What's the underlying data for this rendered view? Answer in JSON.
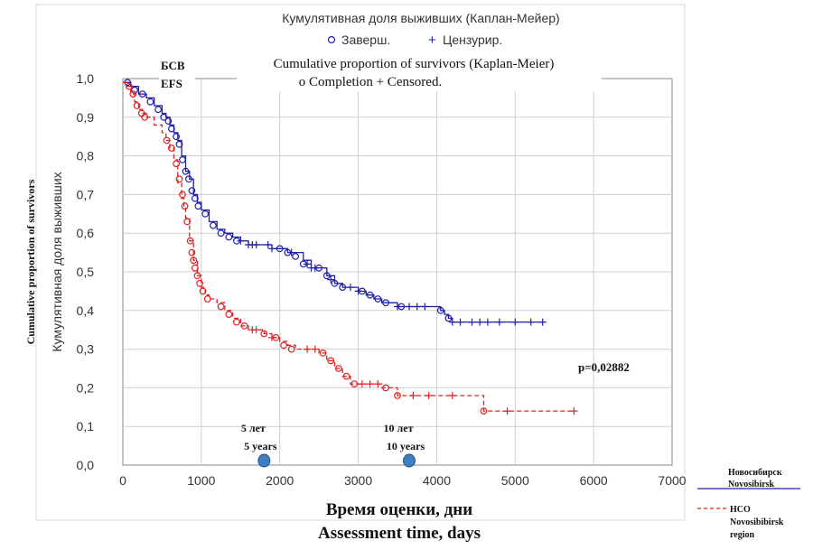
{
  "chart_data": {
    "type": "line",
    "title_ru": "Кумулятивная доля выживших (Каплан-Мейер)",
    "legend_ru": {
      "completed": "Заверш.",
      "censored": "Цензурир."
    },
    "title_en": "Cumulative proportion of survivors (Kaplan-Meier)",
    "legend_en": "o Completion      + Censored.",
    "panel_label_ru": "БСВ",
    "panel_label_en": "EFS",
    "ylabel_ru": "Кумулятивная доля выживших",
    "ylabel_en": "Cumulative proportion of survivors",
    "xlabel_ru": "Время оценки, дни",
    "xlabel_en": "Assessment time, days",
    "p_value": "p=0,02882",
    "xlim": [
      0,
      7000
    ],
    "ylim": [
      0,
      1
    ],
    "x_ticks": [
      "0",
      "1000",
      "2000",
      "3000",
      "4000",
      "5000",
      "6000",
      "7000"
    ],
    "y_ticks": [
      "0,0",
      "0,1",
      "0,2",
      "0,3",
      "0,4",
      "0,5",
      "0,6",
      "0,7",
      "0,8",
      "0,9",
      "1,0"
    ],
    "grid": true,
    "markers": [
      {
        "x": 1800,
        "label_ru": "5 лет",
        "label_en": "5 years"
      },
      {
        "x": 3650,
        "label_ru": "10 лет",
        "label_en": "10 years"
      }
    ],
    "series": [
      {
        "name": "Новосибирск Novosibirsk",
        "name_line1": "Новосибирск",
        "name_line2": "Novosibirsk",
        "color": "#1f1fa8",
        "style": "solid",
        "x": [
          0,
          50,
          100,
          200,
          300,
          400,
          500,
          550,
          600,
          650,
          700,
          750,
          800,
          850,
          900,
          950,
          1000,
          1100,
          1200,
          1300,
          1400,
          1500,
          1600,
          1700,
          1800,
          1900,
          2000,
          2100,
          2200,
          2300,
          2400,
          2500,
          2600,
          2700,
          2800,
          2900,
          3000,
          3100,
          3200,
          3300,
          3400,
          3500,
          3600,
          3700,
          3800,
          3900,
          4000,
          4050,
          4100,
          4150,
          4200,
          4400,
          4600,
          4800,
          5000,
          5200,
          5350
        ],
        "y": [
          0.99,
          0.99,
          0.98,
          0.96,
          0.95,
          0.93,
          0.91,
          0.9,
          0.88,
          0.86,
          0.84,
          0.8,
          0.76,
          0.74,
          0.7,
          0.68,
          0.66,
          0.63,
          0.61,
          0.6,
          0.59,
          0.58,
          0.57,
          0.57,
          0.57,
          0.56,
          0.56,
          0.55,
          0.55,
          0.53,
          0.51,
          0.51,
          0.49,
          0.47,
          0.46,
          0.46,
          0.45,
          0.44,
          0.43,
          0.42,
          0.42,
          0.41,
          0.41,
          0.41,
          0.41,
          0.41,
          0.41,
          0.4,
          0.39,
          0.38,
          0.37,
          0.37,
          0.37,
          0.37,
          0.37,
          0.37,
          0.37
        ],
        "completion_points": [
          [
            60,
            0.99
          ],
          [
            150,
            0.97
          ],
          [
            250,
            0.96
          ],
          [
            350,
            0.94
          ],
          [
            450,
            0.92
          ],
          [
            520,
            0.9
          ],
          [
            580,
            0.89
          ],
          [
            620,
            0.87
          ],
          [
            680,
            0.85
          ],
          [
            720,
            0.83
          ],
          [
            760,
            0.79
          ],
          [
            800,
            0.76
          ],
          [
            840,
            0.74
          ],
          [
            880,
            0.71
          ],
          [
            920,
            0.69
          ],
          [
            960,
            0.67
          ],
          [
            1050,
            0.65
          ],
          [
            1150,
            0.62
          ],
          [
            1250,
            0.6
          ],
          [
            1350,
            0.59
          ],
          [
            1450,
            0.58
          ],
          [
            2000,
            0.56
          ],
          [
            2100,
            0.55
          ],
          [
            2200,
            0.54
          ],
          [
            2300,
            0.52
          ],
          [
            2500,
            0.51
          ],
          [
            2600,
            0.49
          ],
          [
            2700,
            0.47
          ],
          [
            2800,
            0.46
          ],
          [
            3050,
            0.45
          ],
          [
            3150,
            0.44
          ],
          [
            3250,
            0.43
          ],
          [
            3350,
            0.42
          ],
          [
            3550,
            0.41
          ],
          [
            4050,
            0.4
          ],
          [
            4150,
            0.38
          ]
        ],
        "censored_points": [
          [
            1500,
            0.58
          ],
          [
            1600,
            0.57
          ],
          [
            1650,
            0.57
          ],
          [
            1700,
            0.57
          ],
          [
            1850,
            0.57
          ],
          [
            1900,
            0.56
          ],
          [
            2150,
            0.55
          ],
          [
            2350,
            0.52
          ],
          [
            2400,
            0.51
          ],
          [
            2450,
            0.51
          ],
          [
            2650,
            0.48
          ],
          [
            2900,
            0.46
          ],
          [
            3000,
            0.45
          ],
          [
            3500,
            0.41
          ],
          [
            3650,
            0.41
          ],
          [
            3750,
            0.41
          ],
          [
            3850,
            0.41
          ],
          [
            4200,
            0.37
          ],
          [
            4300,
            0.37
          ],
          [
            4450,
            0.37
          ],
          [
            4550,
            0.37
          ],
          [
            4650,
            0.37
          ],
          [
            4800,
            0.37
          ],
          [
            5000,
            0.37
          ],
          [
            5200,
            0.37
          ],
          [
            5350,
            0.37
          ]
        ]
      },
      {
        "name": "НСО Novosibibirsk region",
        "name_line1": "НСО",
        "name_line2": "Novosibibirsk",
        "name_line3": "region",
        "color": "#e02020",
        "style": "dashed",
        "x": [
          0,
          50,
          100,
          150,
          200,
          250,
          300,
          400,
          500,
          550,
          600,
          650,
          700,
          750,
          780,
          800,
          850,
          900,
          950,
          1000,
          1050,
          1100,
          1200,
          1300,
          1400,
          1500,
          1600,
          1700,
          1800,
          1900,
          2000,
          2100,
          2200,
          2300,
          2400,
          2500,
          2600,
          2700,
          2800,
          2900,
          3000,
          3100,
          3200,
          3300,
          3400,
          3500,
          3600,
          3800,
          4000,
          4200,
          4400,
          4600,
          4800,
          5000,
          5200,
          5500,
          5750
        ],
        "y": [
          0.99,
          0.98,
          0.96,
          0.94,
          0.92,
          0.91,
          0.9,
          0.88,
          0.86,
          0.84,
          0.82,
          0.79,
          0.73,
          0.69,
          0.67,
          0.64,
          0.58,
          0.53,
          0.49,
          0.46,
          0.44,
          0.43,
          0.42,
          0.4,
          0.38,
          0.36,
          0.35,
          0.35,
          0.34,
          0.33,
          0.32,
          0.31,
          0.3,
          0.3,
          0.3,
          0.29,
          0.27,
          0.25,
          0.23,
          0.21,
          0.21,
          0.21,
          0.21,
          0.2,
          0.2,
          0.18,
          0.18,
          0.18,
          0.18,
          0.18,
          0.18,
          0.14,
          0.14,
          0.14,
          0.14,
          0.14,
          0.14
        ],
        "completion_points": [
          [
            80,
            0.98
          ],
          [
            130,
            0.96
          ],
          [
            180,
            0.93
          ],
          [
            240,
            0.91
          ],
          [
            280,
            0.9
          ],
          [
            560,
            0.84
          ],
          [
            620,
            0.82
          ],
          [
            680,
            0.78
          ],
          [
            720,
            0.74
          ],
          [
            760,
            0.7
          ],
          [
            790,
            0.67
          ],
          [
            820,
            0.63
          ],
          [
            860,
            0.58
          ],
          [
            880,
            0.55
          ],
          [
            900,
            0.53
          ],
          [
            920,
            0.51
          ],
          [
            950,
            0.49
          ],
          [
            980,
            0.47
          ],
          [
            1020,
            0.45
          ],
          [
            1080,
            0.43
          ],
          [
            1250,
            0.41
          ],
          [
            1350,
            0.39
          ],
          [
            1450,
            0.37
          ],
          [
            1550,
            0.36
          ],
          [
            1800,
            0.34
          ],
          [
            1950,
            0.33
          ],
          [
            2050,
            0.31
          ],
          [
            2150,
            0.3
          ],
          [
            2550,
            0.29
          ],
          [
            2650,
            0.27
          ],
          [
            2750,
            0.25
          ],
          [
            2850,
            0.23
          ],
          [
            2950,
            0.21
          ],
          [
            3350,
            0.2
          ],
          [
            3500,
            0.18
          ],
          [
            4600,
            0.14
          ]
        ],
        "censored_points": [
          [
            1650,
            0.35
          ],
          [
            1700,
            0.35
          ],
          [
            1900,
            0.33
          ],
          [
            2350,
            0.3
          ],
          [
            2450,
            0.3
          ],
          [
            3050,
            0.21
          ],
          [
            3150,
            0.21
          ],
          [
            3250,
            0.21
          ],
          [
            3700,
            0.18
          ],
          [
            3900,
            0.18
          ],
          [
            4200,
            0.18
          ],
          [
            4900,
            0.14
          ],
          [
            5750,
            0.14
          ]
        ]
      }
    ]
  }
}
